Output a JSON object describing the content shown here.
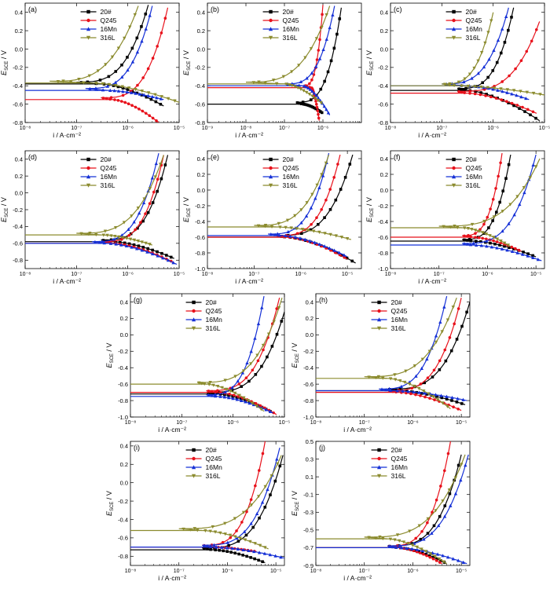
{
  "figure": {
    "series_style": {
      "20#": {
        "color": "#000000",
        "marker": "square"
      },
      "Q245": {
        "color": "#e8111b",
        "marker": "circle"
      },
      "16Mn": {
        "color": "#1530d6",
        "marker": "triangle-up"
      },
      "316L": {
        "color": "#8b8b2e",
        "marker": "triangle-down"
      }
    },
    "xlabel": "i / A·cm⁻²",
    "ylabel_main": "E",
    "ylabel_sub": "SCE",
    "ylabel_unit": " / V"
  },
  "chart_data": [
    {
      "type": "line",
      "panel_label": "(a)",
      "xscale": "log",
      "xlim": [
        1e-08,
        1e-05
      ],
      "ylim": [
        -0.8,
        0.5
      ],
      "xticks": [
        1e-08,
        1e-07,
        1e-06,
        1e-05
      ],
      "xtick_labels": [
        "10⁻⁸",
        "10⁻⁷",
        "10⁻⁶",
        "10⁻⁵"
      ],
      "yticks": [
        -0.8,
        -0.6,
        -0.4,
        -0.2,
        0.0,
        0.2,
        0.4
      ],
      "ytick_labels": [
        "-0.8",
        "-0.6",
        "-0.4",
        "-0.2",
        "0.0",
        "0.2",
        "0.4"
      ],
      "legend_position": "top-center",
      "legend": [
        "20#",
        "Q245",
        "16Mn",
        "316L"
      ],
      "series": [
        {
          "name": "20#",
          "ecorr": -0.38,
          "icorr": 3e-07,
          "ia_start": 1e-07,
          "ia_end": 2.5e-06,
          "e_top": 0.48,
          "ic_end": 5e-06,
          "e_bottom": -0.62
        },
        {
          "name": "Q245",
          "ecorr": -0.55,
          "icorr": 5e-07,
          "ia_start": 3e-07,
          "ia_end": 6e-06,
          "e_top": 0.45,
          "ic_end": 4e-06,
          "e_bottom": -0.8
        },
        {
          "name": "16Mn",
          "ecorr": -0.45,
          "icorr": 4e-07,
          "ia_start": 1.5e-07,
          "ia_end": 3e-06,
          "e_top": 0.47,
          "ic_end": 5e-06,
          "e_bottom": -0.55
        },
        {
          "name": "316L",
          "ecorr": -0.37,
          "icorr": 2e-07,
          "ia_start": 3e-08,
          "ia_end": 1.6e-06,
          "e_top": 0.47,
          "ic_end": 1e-05,
          "e_bottom": -0.58
        }
      ]
    },
    {
      "type": "line",
      "panel_label": "(b)",
      "xscale": "log",
      "xlim": [
        1e-09,
        1e-05
      ],
      "ylim": [
        -0.8,
        0.5
      ],
      "xticks": [
        1e-09,
        1e-08,
        1e-07,
        1e-06
      ],
      "xtick_labels": [
        "10⁻⁹",
        "10⁻⁸",
        "10⁻⁷",
        "10⁻⁶"
      ],
      "yticks": [
        -0.8,
        -0.6,
        -0.4,
        -0.2,
        0.0,
        0.2,
        0.4
      ],
      "ytick_labels": [
        "-0.8",
        "-0.6",
        "-0.4",
        "-0.2",
        "0.0",
        "0.2",
        "0.4"
      ],
      "legend_position": "top-center",
      "legend": [
        "20#",
        "Q245",
        "16Mn",
        "316L"
      ],
      "series": [
        {
          "name": "20#",
          "ecorr": -0.6,
          "icorr": 3e-07,
          "ia_start": 2e-07,
          "ia_end": 3e-06,
          "e_top": 0.45,
          "ic_end": 1e-06,
          "e_bottom": -0.7
        },
        {
          "name": "Q245",
          "ecorr": -0.42,
          "icorr": 5e-07,
          "ia_start": 3e-07,
          "ia_end": 1e-06,
          "e_top": 0.48,
          "ic_end": 8e-07,
          "e_bottom": -0.78
        },
        {
          "name": "16Mn",
          "ecorr": -0.4,
          "icorr": 3e-07,
          "ia_start": 1e-07,
          "ia_end": 2e-06,
          "e_top": 0.47,
          "ic_end": 1.5e-06,
          "e_bottom": -0.72
        },
        {
          "name": "316L",
          "ecorr": -0.38,
          "icorr": 1e-07,
          "ia_start": 1e-08,
          "ia_end": 1.5e-06,
          "e_top": 0.47,
          "ic_end": 1e-06,
          "e_bottom": -0.6
        }
      ]
    },
    {
      "type": "line",
      "panel_label": "(c)",
      "xscale": "log",
      "xlim": [
        1e-08,
        1e-05
      ],
      "ylim": [
        -0.8,
        0.5
      ],
      "xticks": [
        1e-08,
        1e-07,
        1e-06,
        1e-05
      ],
      "xtick_labels": [
        "10⁻⁸",
        "10⁻⁷",
        "10⁻⁶",
        "10⁻⁵"
      ],
      "yticks": [
        -0.8,
        -0.6,
        -0.4,
        -0.2,
        0.0,
        0.2,
        0.4
      ],
      "ytick_labels": [
        "-0.8",
        "-0.6",
        "-0.4",
        "-0.2",
        "0.0",
        "0.2",
        "0.4"
      ],
      "legend_position": "top-center",
      "legend": [
        "20#",
        "Q245",
        "16Mn",
        "316L"
      ],
      "series": [
        {
          "name": "20#",
          "ecorr": -0.45,
          "icorr": 3e-07,
          "ia_start": 2e-07,
          "ia_end": 2.5e-06,
          "e_top": 0.45,
          "ic_end": 8e-06,
          "e_bottom": -0.78
        },
        {
          "name": "Q245",
          "ecorr": -0.48,
          "icorr": 3e-07,
          "ia_start": 2e-07,
          "ia_end": 8e-06,
          "e_top": 0.3,
          "ic_end": 7e-06,
          "e_bottom": -0.7
        },
        {
          "name": "16Mn",
          "ecorr": -0.4,
          "icorr": 3e-07,
          "ia_start": 1e-07,
          "ia_end": 2e-06,
          "e_top": 0.45,
          "ic_end": 5e-06,
          "e_bottom": -0.55
        },
        {
          "name": "316L",
          "ecorr": -0.4,
          "icorr": 2e-07,
          "ia_start": 1e-07,
          "ia_end": 1e-06,
          "e_top": 0.4,
          "ic_end": 1e-05,
          "e_bottom": -0.5
        }
      ]
    },
    {
      "type": "line",
      "panel_label": "(d)",
      "xscale": "log",
      "xlim": [
        1e-08,
        1e-05
      ],
      "ylim": [
        -0.9,
        0.5
      ],
      "xticks": [
        1e-08,
        1e-07,
        1e-06,
        1e-05
      ],
      "xtick_labels": [
        "10⁻⁸",
        "10⁻⁷",
        "10⁻⁶",
        "10⁻⁵"
      ],
      "yticks": [
        -0.8,
        -0.6,
        -0.4,
        -0.2,
        0.0,
        0.2,
        0.4
      ],
      "ytick_labels": [
        "-0.8",
        "-0.6",
        "-0.4",
        "-0.2",
        "0.0",
        "0.2",
        "0.4"
      ],
      "legend_position": "top-center",
      "legend": [
        "20#",
        "Q245",
        "16Mn",
        "316L"
      ],
      "series": [
        {
          "name": "20#",
          "ecorr": -0.58,
          "icorr": 5e-07,
          "ia_start": 3e-07,
          "ia_end": 6e-06,
          "e_top": 0.45,
          "ic_end": 8e-06,
          "e_bottom": -0.78
        },
        {
          "name": "Q245",
          "ecorr": -0.6,
          "icorr": 5e-07,
          "ia_start": 3e-07,
          "ia_end": 5e-06,
          "e_top": 0.45,
          "ic_end": 8e-06,
          "e_bottom": -0.83
        },
        {
          "name": "16Mn",
          "ecorr": -0.6,
          "icorr": 4e-07,
          "ia_start": 2e-07,
          "ia_end": 4e-06,
          "e_top": 0.47,
          "ic_end": 9e-06,
          "e_bottom": -0.85
        },
        {
          "name": "316L",
          "ecorr": -0.5,
          "icorr": 3e-07,
          "ia_start": 1e-07,
          "ia_end": 5e-06,
          "e_top": 0.45,
          "ic_end": 3e-06,
          "e_bottom": -0.62
        }
      ]
    },
    {
      "type": "line",
      "panel_label": "(e)",
      "xscale": "log",
      "xlim": [
        1e-08,
        2e-05
      ],
      "ylim": [
        -1.0,
        0.5
      ],
      "xticks": [
        1e-08,
        1e-07,
        1e-06,
        1e-05
      ],
      "xtick_labels": [
        "10⁻⁸",
        "10⁻⁷",
        "10⁻⁶",
        "10⁻⁵"
      ],
      "yticks": [
        -1.0,
        -0.8,
        -0.6,
        -0.4,
        -0.2,
        0.0,
        0.2,
        0.4
      ],
      "ytick_labels": [
        "-1.0",
        "-0.8",
        "-0.6",
        "-0.4",
        "-0.2",
        "0.0",
        "0.2",
        "0.4"
      ],
      "legend_position": "top-center",
      "legend": [
        "20#",
        "Q245",
        "16Mn",
        "316L"
      ],
      "series": [
        {
          "name": "20#",
          "ecorr": -0.6,
          "icorr": 5e-07,
          "ia_start": 3e-07,
          "ia_end": 1.3e-05,
          "e_top": 0.45,
          "ic_end": 1.5e-05,
          "e_bottom": -0.93
        },
        {
          "name": "Q245",
          "ecorr": -0.6,
          "icorr": 5e-07,
          "ia_start": 3e-07,
          "ia_end": 7e-06,
          "e_top": 0.45,
          "ic_end": 1e-05,
          "e_bottom": -0.88
        },
        {
          "name": "16Mn",
          "ecorr": -0.58,
          "icorr": 4e-07,
          "ia_start": 2e-07,
          "ia_end": 4e-06,
          "e_top": 0.47,
          "ic_end": 1e-05,
          "e_bottom": -0.85
        },
        {
          "name": "316L",
          "ecorr": -0.47,
          "icorr": 3e-07,
          "ia_start": 1e-07,
          "ia_end": 4e-06,
          "e_top": 0.45,
          "ic_end": 1.2e-05,
          "e_bottom": -0.63
        }
      ]
    },
    {
      "type": "line",
      "panel_label": "(f)",
      "xscale": "log",
      "xlim": [
        1e-08,
        1.5e-05
      ],
      "ylim": [
        -1.0,
        0.5
      ],
      "xticks": [
        1e-08,
        1e-07,
        1e-06,
        1e-05
      ],
      "xtick_labels": [
        "10⁻⁸",
        "10⁻⁷",
        "10⁻⁶",
        "10⁻⁵"
      ],
      "yticks": [
        -1.0,
        -0.8,
        -0.6,
        -0.4,
        -0.2,
        0.0,
        0.2,
        0.4
      ],
      "ytick_labels": [
        "-1.0",
        "-0.8",
        "-0.6",
        "-0.4",
        "-0.2",
        "0.0",
        "0.2",
        "0.4"
      ],
      "legend_position": "top-center",
      "legend": [
        "20#",
        "Q245",
        "16Mn",
        "316L"
      ],
      "series": [
        {
          "name": "20#",
          "ecorr": -0.65,
          "icorr": 5e-07,
          "ia_start": 3e-07,
          "ia_end": 3e-06,
          "e_top": 0.45,
          "ic_end": 1e-05,
          "e_bottom": -0.85
        },
        {
          "name": "Q245",
          "ecorr": -0.6,
          "icorr": 5e-07,
          "ia_start": 3e-07,
          "ia_end": 2e-06,
          "e_top": 0.47,
          "ic_end": 5e-06,
          "e_bottom": -0.78
        },
        {
          "name": "16Mn",
          "ecorr": -0.7,
          "icorr": 5e-07,
          "ia_start": 3e-07,
          "ia_end": 1e-05,
          "e_top": 0.45,
          "ic_end": 1.3e-05,
          "e_bottom": -0.9
        },
        {
          "name": "316L",
          "ecorr": -0.48,
          "icorr": 3e-07,
          "ia_start": 1e-07,
          "ia_end": 1.2e-05,
          "e_top": 0.4,
          "ic_end": 3e-06,
          "e_bottom": -0.72
        }
      ]
    },
    {
      "type": "line",
      "panel_label": "(g)",
      "xscale": "log",
      "xlim": [
        1e-08,
        1e-05
      ],
      "ylim": [
        -1.0,
        0.5
      ],
      "xticks": [
        1e-08,
        1e-07,
        1e-06,
        1e-05
      ],
      "xtick_labels": [
        "10⁻⁸",
        "10⁻⁷",
        "10⁻⁶",
        "10⁻⁵"
      ],
      "yticks": [
        -1.0,
        -0.8,
        -0.6,
        -0.4,
        -0.2,
        0.0,
        0.2,
        0.4
      ],
      "ytick_labels": [
        "-1.0",
        "-0.8",
        "-0.6",
        "-0.4",
        "-0.2",
        "0.0",
        "0.2",
        "0.4"
      ],
      "legend_position": "top-center",
      "legend": [
        "20#",
        "Q245",
        "16Mn",
        "316L"
      ],
      "series": [
        {
          "name": "20#",
          "ecorr": -0.72,
          "icorr": 5e-07,
          "ia_start": 3e-07,
          "ia_end": 1e-05,
          "e_top": 0.28,
          "ic_end": 6e-06,
          "e_bottom": -0.95
        },
        {
          "name": "Q245",
          "ecorr": -0.7,
          "icorr": 5e-07,
          "ia_start": 3e-07,
          "ia_end": 8e-06,
          "e_top": 0.45,
          "ic_end": 7e-06,
          "e_bottom": -0.97
        },
        {
          "name": "16Mn",
          "ecorr": -0.75,
          "icorr": 5e-07,
          "ia_start": 3e-07,
          "ia_end": 4e-06,
          "e_top": 0.47,
          "ic_end": 6e-06,
          "e_bottom": -0.95
        },
        {
          "name": "316L",
          "ecorr": -0.6,
          "icorr": 3e-07,
          "ia_start": 2e-07,
          "ia_end": 9e-06,
          "e_top": 0.45,
          "ic_end": 4e-06,
          "e_bottom": -0.93
        }
      ]
    },
    {
      "type": "line",
      "panel_label": "(h)",
      "xscale": "log",
      "xlim": [
        1e-08,
        1.5e-05
      ],
      "ylim": [
        -1.0,
        0.5
      ],
      "xticks": [
        1e-08,
        1e-07,
        1e-06,
        1e-05
      ],
      "xtick_labels": [
        "10⁻⁸",
        "10⁻⁷",
        "10⁻⁶",
        "10⁻⁵"
      ],
      "yticks": [
        -1.0,
        -0.8,
        -0.6,
        -0.4,
        -0.2,
        0.0,
        0.2,
        0.4
      ],
      "ytick_labels": [
        "-1.0",
        "-0.8",
        "-0.6",
        "-0.4",
        "-0.2",
        "0.0",
        "0.2",
        "0.4"
      ],
      "legend_position": "top-center",
      "legend": [
        "20#",
        "Q245",
        "16Mn",
        "316L"
      ],
      "series": [
        {
          "name": "20#",
          "ecorr": -0.68,
          "icorr": 5e-07,
          "ia_start": 3e-07,
          "ia_end": 1.5e-05,
          "e_top": 0.4,
          "ic_end": 1.2e-05,
          "e_bottom": -0.85
        },
        {
          "name": "Q245",
          "ecorr": -0.7,
          "icorr": 5e-07,
          "ia_start": 3e-07,
          "ia_end": 1e-05,
          "e_top": 0.45,
          "ic_end": 1e-05,
          "e_bottom": -0.92
        },
        {
          "name": "16Mn",
          "ecorr": -0.68,
          "icorr": 4e-07,
          "ia_start": 2e-07,
          "ia_end": 5e-06,
          "e_top": 0.47,
          "ic_end": 1.3e-05,
          "e_bottom": -0.8
        },
        {
          "name": "316L",
          "ecorr": -0.53,
          "icorr": 3e-07,
          "ia_start": 1e-07,
          "ia_end": 8e-06,
          "e_top": 0.45,
          "ic_end": 6e-06,
          "e_bottom": -0.9
        }
      ]
    },
    {
      "type": "line",
      "panel_label": "(i)",
      "xscale": "log",
      "xlim": [
        1e-08,
        1.5e-05
      ],
      "ylim": [
        -0.9,
        0.45
      ],
      "xticks": [
        1e-08,
        1e-07,
        1e-06,
        1e-05
      ],
      "xtick_labels": [
        "10⁻⁸",
        "10⁻⁷",
        "10⁻⁶",
        "10⁻⁵"
      ],
      "yticks": [
        -0.8,
        -0.6,
        -0.4,
        -0.2,
        0.0,
        0.2,
        0.4
      ],
      "ytick_labels": [
        "-0.8",
        "-0.6",
        "-0.4",
        "-0.2",
        "0.0",
        "0.2",
        "0.4"
      ],
      "legend_position": "top-center",
      "legend": [
        "20#",
        "Q245",
        "16Mn",
        "316L"
      ],
      "series": [
        {
          "name": "20#",
          "ecorr": -0.73,
          "icorr": 5e-07,
          "ia_start": 3e-07,
          "ia_end": 1.4e-05,
          "e_top": 0.3,
          "ic_end": 6e-06,
          "e_bottom": -0.87
        },
        {
          "name": "Q245",
          "ecorr": -0.7,
          "icorr": 5e-07,
          "ia_start": 3e-07,
          "ia_end": 6e-06,
          "e_top": 0.45,
          "ic_end": 4e-06,
          "e_bottom": -0.75
        },
        {
          "name": "16Mn",
          "ecorr": -0.7,
          "icorr": 5e-07,
          "ia_start": 3e-07,
          "ia_end": 1.2e-05,
          "e_top": 0.38,
          "ic_end": 1.5e-05,
          "e_bottom": -0.82
        },
        {
          "name": "316L",
          "ecorr": -0.52,
          "icorr": 3e-07,
          "ia_start": 1e-07,
          "ia_end": 1.3e-05,
          "e_top": 0.3,
          "ic_end": 7e-06,
          "e_bottom": -0.72
        }
      ]
    },
    {
      "type": "line",
      "panel_label": "(j)",
      "xscale": "log",
      "xlim": [
        1e-08,
        1.5e-05
      ],
      "ylim": [
        -0.9,
        0.5
      ],
      "xticks": [
        1e-08,
        1e-07,
        1e-06,
        1e-05
      ],
      "xtick_labels": [
        "10⁻⁸",
        "10⁻⁷",
        "10⁻⁶",
        "10⁻⁵"
      ],
      "yticks": [
        -0.9,
        -0.7,
        -0.5,
        -0.3,
        -0.1,
        0.1,
        0.3,
        0.5
      ],
      "ytick_labels": [
        "-0.9",
        "-0.7",
        "-0.5",
        "-0.3",
        "-0.1",
        "0.1",
        "0.3",
        "0.5"
      ],
      "legend_position": "top-center",
      "legend": [
        "20#",
        "Q245",
        "16Mn",
        "316L"
      ],
      "series": [
        {
          "name": "20#",
          "ecorr": -0.7,
          "icorr": 5e-07,
          "ia_start": 3e-07,
          "ia_end": 1e-05,
          "e_top": 0.35,
          "ic_end": 5e-06,
          "e_bottom": -0.88
        },
        {
          "name": "Q245",
          "ecorr": -0.7,
          "icorr": 5e-07,
          "ia_start": 3e-07,
          "ia_end": 6e-06,
          "e_top": 0.5,
          "ic_end": 4e-06,
          "e_bottom": -0.88
        },
        {
          "name": "16Mn",
          "ecorr": -0.7,
          "icorr": 5e-07,
          "ia_start": 3e-07,
          "ia_end": 1.4e-05,
          "e_top": 0.35,
          "ic_end": 1.3e-05,
          "e_bottom": -0.88
        },
        {
          "name": "316L",
          "ecorr": -0.6,
          "icorr": 3e-07,
          "ia_start": 1e-07,
          "ia_end": 1.2e-05,
          "e_top": 0.35,
          "ic_end": 5e-06,
          "e_bottom": -0.88
        }
      ]
    }
  ]
}
